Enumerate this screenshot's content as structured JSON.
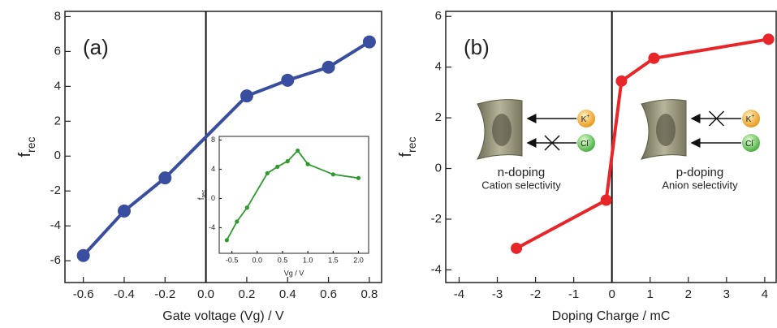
{
  "chart_data": [
    {
      "type": "line",
      "annotation": "(a)",
      "xlabel": "Gate voltage (Vg) / V",
      "ylabel": "f",
      "ylabel_sub": "rec",
      "x": [
        -0.6,
        -0.4,
        -0.2,
        0.2,
        0.4,
        0.6,
        0.8
      ],
      "series": [
        {
          "color": "#3a4ea0",
          "values": [
            -5.7,
            -3.15,
            -1.25,
            3.45,
            4.35,
            5.1,
            6.55
          ]
        }
      ],
      "xlim": [
        -0.69,
        0.86
      ],
      "ylim": [
        -7.25,
        8.3
      ],
      "xticks": [
        -0.6,
        -0.4,
        -0.2,
        {
          "value": 0,
          "label": "0.0"
        },
        0.2,
        0.4,
        0.6,
        0.8
      ],
      "yticks": [
        -6,
        -4,
        -2,
        0,
        2,
        4,
        6,
        8
      ],
      "vline": 0
    },
    {
      "type": "line",
      "inset": true,
      "xlabel": "Vg / V",
      "ylabel": "f",
      "ylabel_sub": "rec",
      "x": [
        -0.6,
        -0.4,
        -0.2,
        0.2,
        0.4,
        0.6,
        0.8,
        1.0,
        1.5,
        2.0
      ],
      "series": [
        {
          "color": "#2e9a2e",
          "values": [
            -5.7,
            -3.15,
            -1.25,
            3.45,
            4.35,
            5.1,
            6.55,
            4.7,
            3.3,
            2.8
          ]
        }
      ],
      "xlim": [
        -0.75,
        2.2
      ],
      "ylim": [
        -7.5,
        8.5
      ],
      "xticks": [
        -0.5,
        {
          "value": 0,
          "label": "0.0"
        },
        0.5,
        {
          "value": 1,
          "label": "1.0"
        },
        1.5,
        {
          "value": 2,
          "label": "2.0"
        }
      ],
      "yticks": [
        -4,
        0,
        4,
        8
      ]
    },
    {
      "type": "line",
      "annotation": "(b)",
      "xlabel": "Doping Charge / mC",
      "ylabel": "f",
      "ylabel_sub": "rec",
      "x": [
        -2.5,
        -0.15,
        0.25,
        1.1,
        4.1
      ],
      "series": [
        {
          "color": "#e8262a",
          "values": [
            -3.15,
            -1.25,
            3.45,
            4.35,
            5.1
          ]
        }
      ],
      "xlim": [
        -4.35,
        4.3
      ],
      "ylim": [
        -4.5,
        6.2
      ],
      "xticks": [
        -4,
        -3,
        -2,
        -1,
        0,
        1,
        2,
        3,
        4
      ],
      "yticks": [
        -4,
        -2,
        0,
        2,
        4,
        6
      ],
      "vline": 0,
      "diagrams": [
        {
          "title": "n-doping",
          "subtitle": "Cation selectivity",
          "ions": [
            {
              "symbol": "K",
              "charge": "+",
              "blocked": false
            },
            {
              "symbol": "Cl",
              "charge": "-",
              "blocked": true
            }
          ]
        },
        {
          "title": "p-doping",
          "subtitle": "Anion selectivity",
          "ions": [
            {
              "symbol": "K",
              "charge": "+",
              "blocked": true
            },
            {
              "symbol": "Cl",
              "charge": "-",
              "blocked": false
            }
          ]
        }
      ]
    }
  ]
}
